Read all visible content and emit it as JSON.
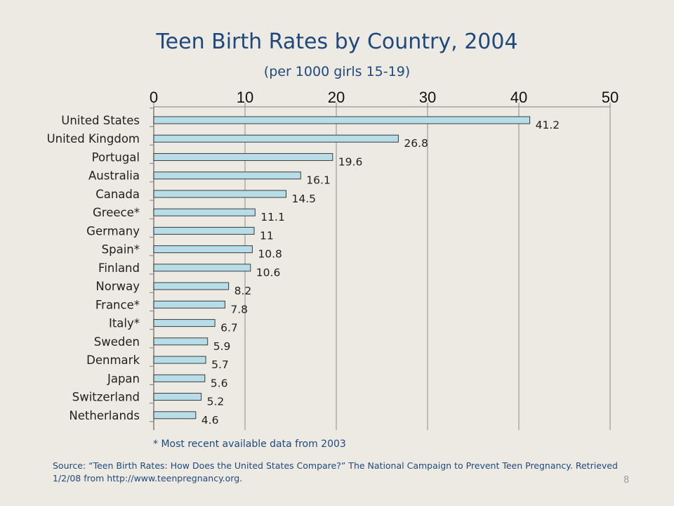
{
  "slide": {
    "note": "* Most recent available data from 2003",
    "source": "Source: “Teen Birth Rates: How Does the United States Compare?” The National Campaign to Prevent Teen Pregnancy. Retrieved 1/2/08 from http://www.teenpregnancy.org.",
    "page_number": "8"
  },
  "chart_data": {
    "type": "bar",
    "orientation": "horizontal",
    "title": "Teen Birth Rates by Country, 2004",
    "subtitle": "(per 1000 girls 15-19)",
    "categories": [
      "United States",
      "United Kingdom",
      "Portugal",
      "Australia",
      "Canada",
      "Greece*",
      "Germany",
      "Spain*",
      "Finland",
      "Norway",
      "France*",
      "Italy*",
      "Sweden",
      "Denmark",
      "Japan",
      "Switzerland",
      "Netherlands"
    ],
    "values": [
      41.2,
      26.8,
      19.6,
      16.1,
      14.5,
      11.1,
      11,
      10.8,
      10.6,
      8.2,
      7.8,
      6.7,
      5.9,
      5.7,
      5.6,
      5.2,
      4.6
    ],
    "value_labels": [
      "41.2",
      "26.8",
      "19.6",
      "16.1",
      "14.5",
      "11.1",
      "11",
      "10.8",
      "10.6",
      "8.2",
      "7.8",
      "6.7",
      "5.9",
      "5.7",
      "5.6",
      "5.2",
      "4.6"
    ],
    "xlim": [
      0,
      50
    ],
    "xticks": [
      "0",
      "10",
      "20",
      "30",
      "40",
      "50"
    ],
    "xaxis_position": "top",
    "grid": true,
    "legend": "none",
    "colors": {
      "bar_fill": "#B7DDE8",
      "bar_stroke": "#3C3C3C",
      "axis": "#7F7F7F",
      "grid": "#ABABAB",
      "text": "#1F1F1F",
      "title": "#1F497D"
    }
  }
}
